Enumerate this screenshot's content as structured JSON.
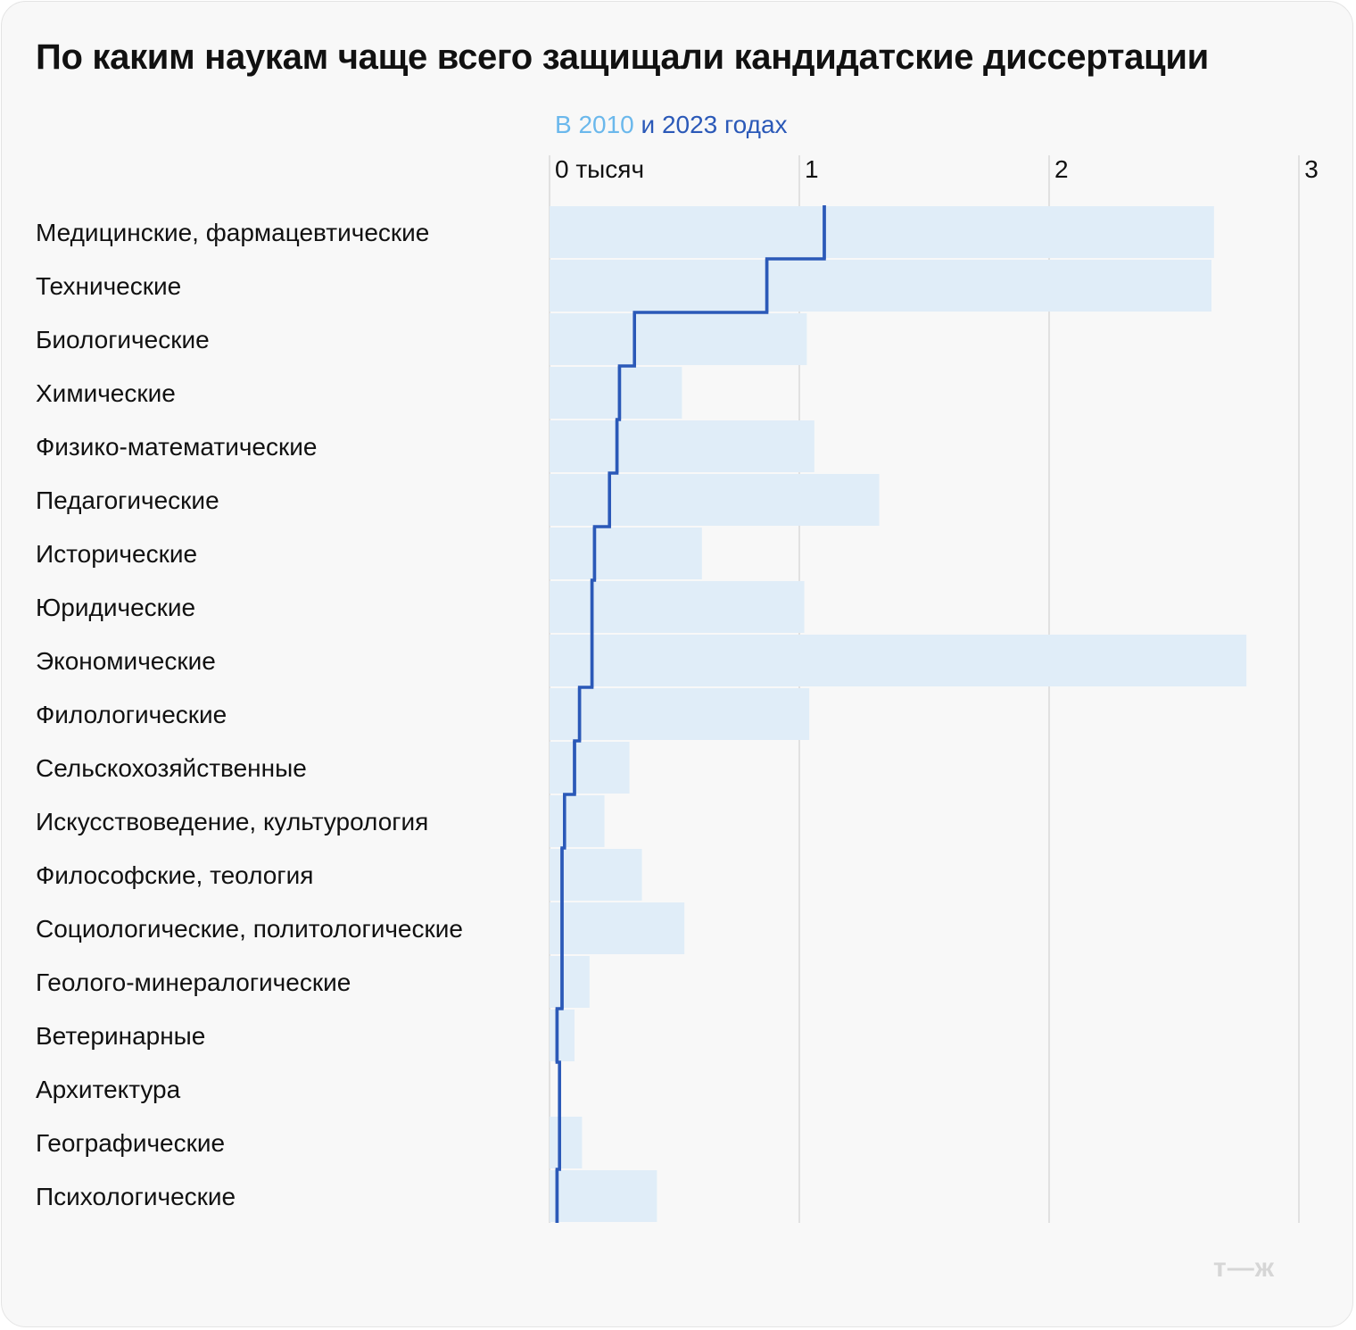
{
  "title": "По каким наукам чаще всего защищали кандидатские диссертации",
  "legend": {
    "prefix": "В",
    "year_2010": "2010",
    "conjunction": "и",
    "year_2023": "2023",
    "suffix": "годах"
  },
  "watermark": "т—ж",
  "colors": {
    "bar_2010": "#e0edf8",
    "line_2023": "#2b59b8",
    "grid": "#d9d9d9",
    "legend_2010": "#6bb8ec",
    "legend_2023": "#2b59b8"
  },
  "chart_data": {
    "type": "bar",
    "orientation": "horizontal",
    "title": "По каким наукам чаще всего защищали кандидатские диссертации",
    "subtitle": "В 2010 и 2023 годах",
    "xlabel": "тысяч",
    "xlim": [
      0,
      3
    ],
    "x_ticks": [
      {
        "value": 0,
        "label": "0 тысяч"
      },
      {
        "value": 1,
        "label": "1"
      },
      {
        "value": 2,
        "label": "2"
      },
      {
        "value": 3,
        "label": "3"
      }
    ],
    "grid": true,
    "categories": [
      "Медицинские, фармацевтические",
      "Технические",
      "Биологические",
      "Химические",
      "Физико-математические",
      "Педагогические",
      "Исторические",
      "Юридические",
      "Экономические",
      "Филологические",
      "Сельскохозяйственные",
      "Искусствоведение, культурология",
      "Философские, теология",
      "Социологические, политологические",
      "Геолого-минералогические",
      "Ветеринарные",
      "Архитектура",
      "Географические",
      "Психологические"
    ],
    "series": [
      {
        "name": "2010",
        "style": "bar",
        "values": [
          2.66,
          2.65,
          1.03,
          0.53,
          1.06,
          1.32,
          0.61,
          1.02,
          2.79,
          1.04,
          0.32,
          0.22,
          0.37,
          0.54,
          0.16,
          0.1,
          0.0,
          0.13,
          0.43
        ]
      },
      {
        "name": "2023",
        "style": "step-line",
        "values": [
          1.1,
          0.87,
          0.34,
          0.28,
          0.27,
          0.24,
          0.18,
          0.17,
          0.17,
          0.12,
          0.1,
          0.06,
          0.05,
          0.05,
          0.05,
          0.03,
          0.04,
          0.04,
          0.03
        ]
      }
    ]
  }
}
